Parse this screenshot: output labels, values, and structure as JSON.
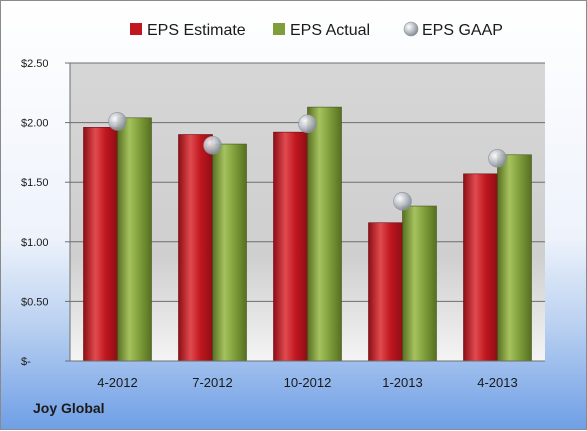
{
  "footer": {
    "company": "Joy Global"
  },
  "colors": {
    "estimate": "#c0161f",
    "actual": "#7f9e3a",
    "gaap": "#b9bec6"
  },
  "chart_data": {
    "type": "bar",
    "title": "",
    "xlabel": "",
    "ylabel": "",
    "categories": [
      "4-2012",
      "7-2012",
      "10-2012",
      "1-2013",
      "4-2013"
    ],
    "series": [
      {
        "name": "EPS Estimate",
        "kind": "bar",
        "values": [
          1.96,
          1.9,
          1.92,
          1.16,
          1.57
        ]
      },
      {
        "name": "EPS Actual",
        "kind": "bar",
        "values": [
          2.04,
          1.82,
          2.13,
          1.3,
          1.73
        ]
      },
      {
        "name": "EPS GAAP",
        "kind": "marker",
        "values": [
          2.01,
          1.81,
          1.99,
          1.34,
          1.7
        ]
      }
    ],
    "ylim": [
      0,
      2.5
    ],
    "yticks": [
      0,
      0.5,
      1.0,
      1.5,
      2.0,
      2.5
    ],
    "ytick_labels": [
      "$-",
      "$0.50",
      "$1.00",
      "$1.50",
      "$2.00",
      "$2.50"
    ],
    "legend_position": "top",
    "grid": true
  }
}
